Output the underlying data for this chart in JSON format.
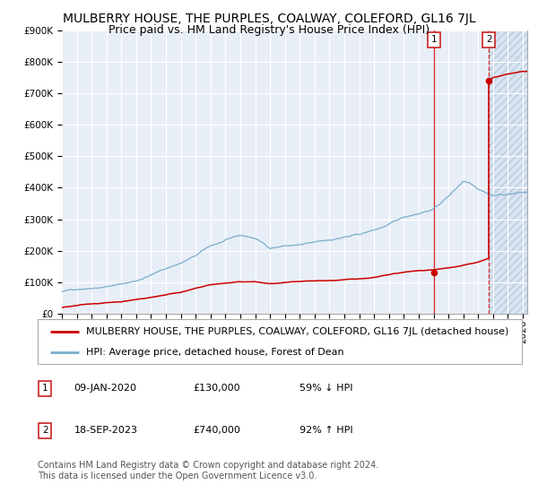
{
  "title": "MULBERRY HOUSE, THE PURPLES, COALWAY, COLEFORD, GL16 7JL",
  "subtitle": "Price paid vs. HM Land Registry's House Price Index (HPI)",
  "legend_label_red": "MULBERRY HOUSE, THE PURPLES, COALWAY, COLEFORD, GL16 7JL (detached house)",
  "legend_label_blue": "HPI: Average price, detached house, Forest of Dean",
  "sale1_date": "09-JAN-2020",
  "sale1_price": 130000,
  "sale1_pct": "59% ↓ HPI",
  "sale2_date": "18-SEP-2023",
  "sale2_price": 740000,
  "sale2_pct": "92% ↑ HPI",
  "footer": "Contains HM Land Registry data © Crown copyright and database right 2024.\nThis data is licensed under the Open Government Licence v3.0.",
  "sale1_date_num": 2020.03,
  "sale2_date_num": 2023.72,
  "ylim": [
    0,
    900000
  ],
  "xlim_start": 1995.0,
  "xlim_end": 2026.3,
  "plot_bg_color": "#e8eef7",
  "hatch_bg_color": "#d8e4f0",
  "grid_color": "#ffffff",
  "red_line_color": "#cc0000",
  "blue_line_color": "#7aadcc",
  "sale_dot_color": "#cc0000",
  "sale1_vline_color": "#cc0000",
  "sale2_vline_color": "#cc0000",
  "box_edge_color": "#cc2222",
  "title_fontsize": 10,
  "subtitle_fontsize": 9,
  "tick_fontsize": 7.5,
  "legend_fontsize": 8,
  "footer_fontsize": 7
}
